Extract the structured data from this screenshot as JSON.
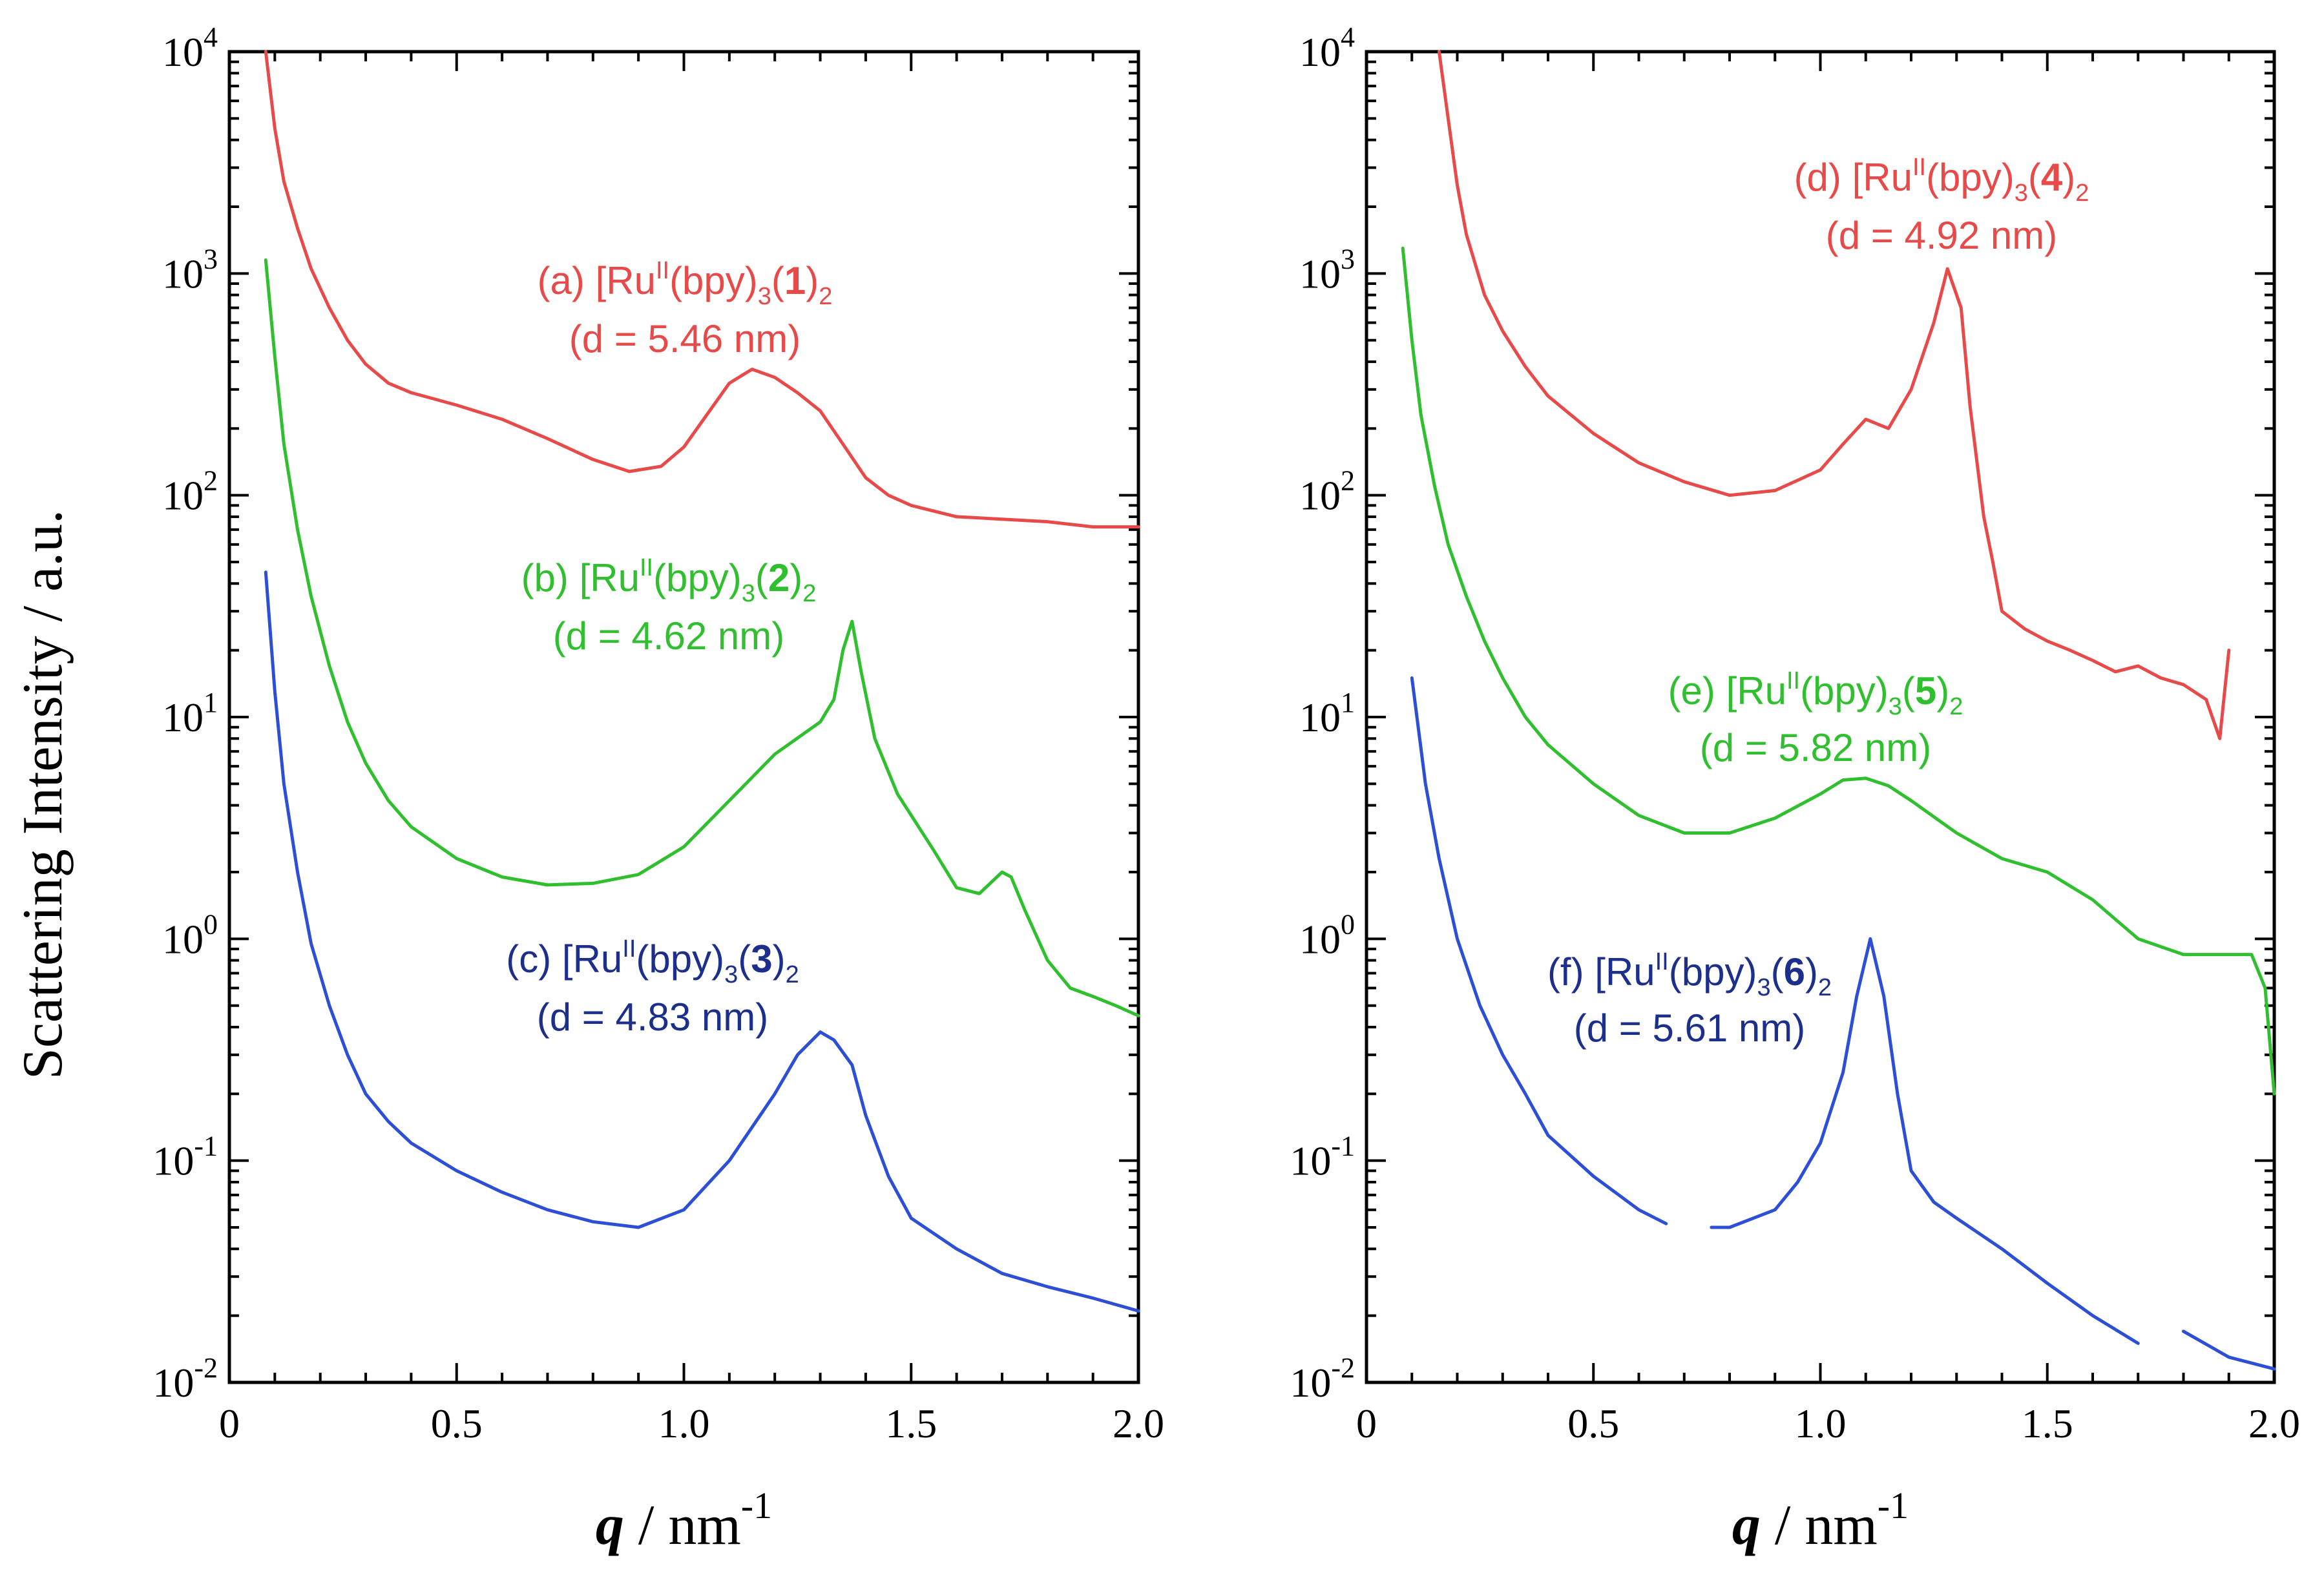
{
  "chart_data": [
    {
      "type": "line",
      "panel": "left",
      "xlabel_var": "q",
      "xlabel_unit": " / nm",
      "xlabel_exp": "-1",
      "ylabel": "Scattering Intensity / a.u.",
      "yscale": "log",
      "xlim": [
        0,
        2.0
      ],
      "ylim_exp": [
        -2,
        4
      ],
      "xticks": [
        "0",
        "0.5",
        "1.0",
        "1.5",
        "2.0"
      ],
      "ytick_base": "10",
      "ytick_exps": [
        "4",
        "3",
        "2",
        "1",
        "0",
        "-1",
        "-2"
      ],
      "series": [
        {
          "name": "a",
          "color": "#e84a4a",
          "label_main": "(a) [Ru",
          "label_sup": "II",
          "label_mid": "(bpy)",
          "label_sub": "3",
          "label_bold": "1",
          "label_tail": "2",
          "label_d": "(d = 5.46 nm)",
          "points": [
            [
              0.08,
              10000
            ],
            [
              0.1,
              4500
            ],
            [
              0.12,
              2600
            ],
            [
              0.15,
              1600
            ],
            [
              0.18,
              1050
            ],
            [
              0.22,
              700
            ],
            [
              0.26,
              500
            ],
            [
              0.3,
              390
            ],
            [
              0.35,
              320
            ],
            [
              0.4,
              290
            ],
            [
              0.5,
              255
            ],
            [
              0.6,
              220
            ],
            [
              0.7,
              180
            ],
            [
              0.8,
              145
            ],
            [
              0.88,
              128
            ],
            [
              0.95,
              135
            ],
            [
              1.0,
              165
            ],
            [
              1.05,
              230
            ],
            [
              1.1,
              320
            ],
            [
              1.15,
              370
            ],
            [
              1.2,
              340
            ],
            [
              1.25,
              290
            ],
            [
              1.3,
              240
            ],
            [
              1.35,
              170
            ],
            [
              1.4,
              120
            ],
            [
              1.45,
              100
            ],
            [
              1.5,
              90
            ],
            [
              1.6,
              80
            ],
            [
              1.7,
              78
            ],
            [
              1.8,
              76
            ],
            [
              1.9,
              72
            ],
            [
              2.0,
              72
            ]
          ]
        },
        {
          "name": "b",
          "color": "#2fbf2f",
          "label_main": "(b) [Ru",
          "label_sup": "II",
          "label_mid": "(bpy)",
          "label_sub": "3",
          "label_bold": "2",
          "label_tail": "2",
          "label_d": "(d = 4.62 nm)",
          "points": [
            [
              0.08,
              1150
            ],
            [
              0.1,
              420
            ],
            [
              0.12,
              170
            ],
            [
              0.15,
              70
            ],
            [
              0.18,
              35
            ],
            [
              0.22,
              17
            ],
            [
              0.26,
              9.5
            ],
            [
              0.3,
              6.2
            ],
            [
              0.35,
              4.2
            ],
            [
              0.4,
              3.2
            ],
            [
              0.5,
              2.3
            ],
            [
              0.6,
              1.9
            ],
            [
              0.7,
              1.75
            ],
            [
              0.8,
              1.78
            ],
            [
              0.9,
              1.95
            ],
            [
              1.0,
              2.6
            ],
            [
              1.1,
              4.2
            ],
            [
              1.2,
              6.8
            ],
            [
              1.3,
              9.5
            ],
            [
              1.33,
              12
            ],
            [
              1.35,
              20
            ],
            [
              1.37,
              27
            ],
            [
              1.39,
              16
            ],
            [
              1.42,
              8
            ],
            [
              1.47,
              4.5
            ],
            [
              1.55,
              2.5
            ],
            [
              1.6,
              1.7
            ],
            [
              1.65,
              1.6
            ],
            [
              1.7,
              2.0
            ],
            [
              1.72,
              1.9
            ],
            [
              1.75,
              1.35
            ],
            [
              1.8,
              0.8
            ],
            [
              1.85,
              0.6
            ],
            [
              1.9,
              0.55
            ],
            [
              1.95,
              0.5
            ],
            [
              2.0,
              0.45
            ]
          ]
        },
        {
          "name": "c",
          "color": "#2d4fd6",
          "label_main": "(c) [Ru",
          "label_sup": "II",
          "label_mid": "(bpy)",
          "label_sub": "3",
          "label_bold": "3",
          "label_tail": "2",
          "label_d": "(d = 4.83 nm)",
          "points": [
            [
              0.08,
              45
            ],
            [
              0.1,
              13
            ],
            [
              0.12,
              5
            ],
            [
              0.15,
              2
            ],
            [
              0.18,
              0.95
            ],
            [
              0.22,
              0.5
            ],
            [
              0.26,
              0.3
            ],
            [
              0.3,
              0.2
            ],
            [
              0.35,
              0.15
            ],
            [
              0.4,
              0.12
            ],
            [
              0.5,
              0.09
            ],
            [
              0.6,
              0.072
            ],
            [
              0.7,
              0.06
            ],
            [
              0.8,
              0.053
            ],
            [
              0.9,
              0.05
            ],
            [
              1.0,
              0.06
            ],
            [
              1.1,
              0.1
            ],
            [
              1.2,
              0.2
            ],
            [
              1.25,
              0.3
            ],
            [
              1.3,
              0.38
            ],
            [
              1.33,
              0.35
            ],
            [
              1.37,
              0.27
            ],
            [
              1.4,
              0.16
            ],
            [
              1.45,
              0.085
            ],
            [
              1.5,
              0.055
            ],
            [
              1.6,
              0.04
            ],
            [
              1.7,
              0.031
            ],
            [
              1.8,
              0.027
            ],
            [
              1.9,
              0.024
            ],
            [
              2.0,
              0.021
            ]
          ]
        }
      ]
    },
    {
      "type": "line",
      "panel": "right",
      "xlabel_var": "q",
      "xlabel_unit": " / nm",
      "xlabel_exp": "-1",
      "yscale": "log",
      "xlim": [
        0,
        2.0
      ],
      "ylim_exp": [
        -2,
        4
      ],
      "xticks": [
        "0",
        "0.5",
        "1.0",
        "1.5",
        "2.0"
      ],
      "ytick_base": "10",
      "ytick_exps": [
        "4",
        "3",
        "2",
        "1",
        "0",
        "-1",
        "-2"
      ],
      "series": [
        {
          "name": "d",
          "color": "#e84a4a",
          "label_main": "(d) [Ru",
          "label_sup": "II",
          "label_mid": "(bpy)",
          "label_sub": "3",
          "label_bold": "4",
          "label_tail": "2",
          "label_d": "(d = 4.92 nm)",
          "points": [
            [
              0.16,
              10000
            ],
            [
              0.18,
              5000
            ],
            [
              0.2,
              2500
            ],
            [
              0.22,
              1500
            ],
            [
              0.26,
              800
            ],
            [
              0.3,
              550
            ],
            [
              0.35,
              380
            ],
            [
              0.4,
              280
            ],
            [
              0.5,
              190
            ],
            [
              0.6,
              140
            ],
            [
              0.7,
              115
            ],
            [
              0.8,
              100
            ],
            [
              0.9,
              105
            ],
            [
              1.0,
              130
            ],
            [
              1.05,
              170
            ],
            [
              1.1,
              220
            ],
            [
              1.15,
              200
            ],
            [
              1.2,
              300
            ],
            [
              1.25,
              600
            ],
            [
              1.28,
              1050
            ],
            [
              1.31,
              700
            ],
            [
              1.33,
              250
            ],
            [
              1.36,
              80
            ],
            [
              1.38,
              50
            ],
            [
              1.4,
              30
            ],
            [
              1.45,
              25
            ],
            [
              1.5,
              22
            ],
            [
              1.55,
              20
            ],
            [
              1.6,
              18
            ],
            [
              1.65,
              16
            ],
            [
              1.7,
              17
            ],
            [
              1.75,
              15
            ],
            [
              1.8,
              14
            ],
            [
              1.85,
              12
            ],
            [
              1.88,
              8
            ],
            [
              1.9,
              20
            ]
          ]
        },
        {
          "name": "e",
          "color": "#2fbf2f",
          "label_main": "(e) [Ru",
          "label_sup": "II",
          "label_mid": "(bpy)",
          "label_sub": "3",
          "label_bold": "5",
          "label_tail": "2",
          "label_d": "(d = 5.82 nm)",
          "points": [
            [
              0.08,
              1300
            ],
            [
              0.1,
              500
            ],
            [
              0.12,
              230
            ],
            [
              0.15,
              110
            ],
            [
              0.18,
              60
            ],
            [
              0.22,
              35
            ],
            [
              0.26,
              22
            ],
            [
              0.3,
              15
            ],
            [
              0.35,
              10
            ],
            [
              0.4,
              7.5
            ],
            [
              0.5,
              5
            ],
            [
              0.6,
              3.6
            ],
            [
              0.7,
              3.0
            ],
            [
              0.8,
              3.0
            ],
            [
              0.9,
              3.5
            ],
            [
              1.0,
              4.5
            ],
            [
              1.05,
              5.2
            ],
            [
              1.1,
              5.3
            ],
            [
              1.15,
              4.9
            ],
            [
              1.2,
              4.2
            ],
            [
              1.3,
              3.0
            ],
            [
              1.4,
              2.3
            ],
            [
              1.5,
              2.0
            ],
            [
              1.6,
              1.5
            ],
            [
              1.7,
              1.0
            ],
            [
              1.8,
              0.85
            ],
            [
              1.9,
              0.85
            ],
            [
              1.95,
              0.85
            ],
            [
              1.98,
              0.6
            ],
            [
              2.0,
              0.2
            ]
          ]
        },
        {
          "name": "f",
          "color": "#2d4fd6",
          "label_main": "(f) [Ru",
          "label_sup": "II",
          "label_mid": "(bpy)",
          "label_sub": "3",
          "label_bold": "6",
          "label_tail": "2",
          "label_d": "(d = 5.61 nm)",
          "points": [
            [
              0.1,
              15
            ],
            [
              0.13,
              5
            ],
            [
              0.16,
              2.3
            ],
            [
              0.2,
              1.0
            ],
            [
              0.25,
              0.5
            ],
            [
              0.3,
              0.3
            ],
            [
              0.35,
              0.2
            ],
            [
              0.4,
              0.13
            ],
            [
              0.5,
              0.085
            ],
            [
              0.6,
              0.06
            ],
            [
              0.66,
              0.052
            ],
            [
              null,
              null
            ],
            [
              0.76,
              0.05
            ],
            [
              0.8,
              0.05
            ],
            [
              0.9,
              0.06
            ],
            [
              0.95,
              0.08
            ],
            [
              1.0,
              0.12
            ],
            [
              1.05,
              0.25
            ],
            [
              1.08,
              0.55
            ],
            [
              1.11,
              1.0
            ],
            [
              1.14,
              0.55
            ],
            [
              1.17,
              0.2
            ],
            [
              1.2,
              0.09
            ],
            [
              1.25,
              0.065
            ],
            [
              1.3,
              0.055
            ],
            [
              1.4,
              0.04
            ],
            [
              1.5,
              0.028
            ],
            [
              1.6,
              0.02
            ],
            [
              1.7,
              0.015
            ],
            [
              null,
              null
            ],
            [
              1.8,
              0.017
            ],
            [
              1.9,
              0.013
            ],
            [
              2.0,
              0.0115
            ]
          ]
        }
      ]
    }
  ]
}
